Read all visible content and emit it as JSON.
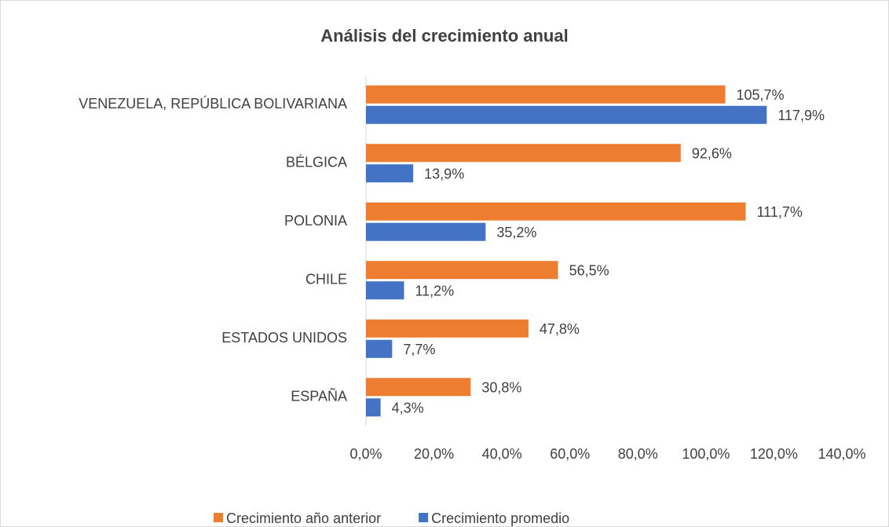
{
  "chart_data": {
    "type": "barh",
    "title": "Análisis del crecimiento anual",
    "categories": [
      "VENEZUELA, REPÚBLICA BOLIVARIANA",
      "BÉLGICA",
      "POLONIA",
      "CHILE",
      "ESTADOS UNIDOS",
      "ESPAÑA"
    ],
    "series": [
      {
        "name": "Crecimiento año anterior",
        "color": "#ed7d31",
        "values": [
          105.7,
          92.6,
          111.7,
          56.5,
          47.8,
          30.8
        ],
        "value_labels": [
          "105,7%",
          "92,6%",
          "111,7%",
          "56,5%",
          "47,8%",
          "30,8%"
        ]
      },
      {
        "name": "Crecimiento promedio",
        "color": "#4472c4",
        "values": [
          117.9,
          13.9,
          35.2,
          11.2,
          7.7,
          4.3
        ],
        "value_labels": [
          "117,9%",
          "13,9%",
          "35,2%",
          "11,2%",
          "7,7%",
          "4,3%"
        ]
      }
    ],
    "xlim": [
      0,
      140
    ],
    "xticks": [
      {
        "value": 0,
        "label": "0,0%"
      },
      {
        "value": 20,
        "label": "20,0%"
      },
      {
        "value": 40,
        "label": "40,0%"
      },
      {
        "value": 60,
        "label": "60,0%"
      },
      {
        "value": 80,
        "label": "80,0%"
      },
      {
        "value": 100,
        "label": "100,0%"
      },
      {
        "value": 120,
        "label": "120,0%"
      },
      {
        "value": 140,
        "label": "140,0%"
      }
    ],
    "grid": false,
    "legend": "bottom"
  }
}
